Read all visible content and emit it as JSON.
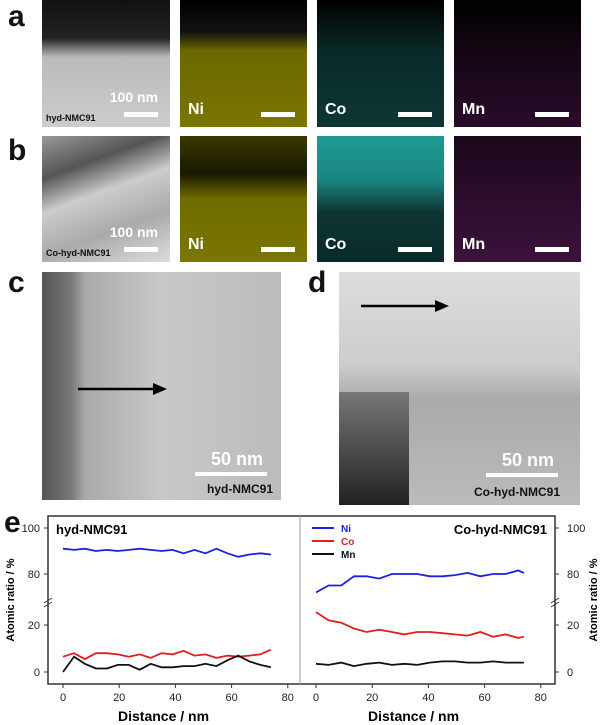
{
  "panels": {
    "a": {
      "letter": "a",
      "sample": "hyd-NMC91",
      "scale": "100 nm",
      "maps": [
        "Ni",
        "Co",
        "Mn"
      ]
    },
    "b": {
      "letter": "b",
      "sample": "Co-hyd-NMC91",
      "scale": "100 nm",
      "maps": [
        "Ni",
        "Co",
        "Mn"
      ]
    },
    "c": {
      "letter": "c",
      "sample": "hyd-NMC91",
      "scale": "50 nm"
    },
    "d": {
      "letter": "d",
      "sample": "Co-hyd-NMC91",
      "scale": "50 nm"
    },
    "e": {
      "letter": "e"
    }
  },
  "colors": {
    "Ni": "#1f1fe0",
    "Co": "#e01f1f",
    "Mn": "#111111",
    "ni_map": "#b8b400",
    "co_map": "#2ad0c8",
    "mn_map": "#a020a0"
  },
  "chart_data": [
    {
      "type": "line",
      "title": "hyd-NMC91",
      "xlabel": "Distance / nm",
      "ylabel": "Atomic ratio / %",
      "xlim": [
        0,
        80
      ],
      "xticks": [
        "0",
        "20",
        "40",
        "60",
        "80"
      ],
      "yticks": [
        "0",
        "20",
        "80",
        "100"
      ],
      "ybreak": [
        27,
        73
      ],
      "x": [
        0,
        3.9,
        7.8,
        11.7,
        15.6,
        19.5,
        23.4,
        27.3,
        31.2,
        35.1,
        39,
        42.9,
        46.8,
        50.7,
        54.6,
        58.5,
        62.4,
        66.3,
        70.2,
        74
      ],
      "series": [
        {
          "name": "Ni",
          "values": [
            91,
            90.5,
            91,
            90,
            90.5,
            90,
            90.5,
            91,
            90.5,
            90,
            90.5,
            89,
            90.5,
            89,
            91,
            89,
            87.5,
            88.5,
            89,
            88.5
          ]
        },
        {
          "name": "Co",
          "values": [
            6.5,
            8,
            5.5,
            8,
            8,
            7.5,
            6.5,
            7.5,
            6,
            8,
            7.5,
            9,
            7,
            7.5,
            6,
            7,
            6.5,
            7,
            7.5,
            9.5
          ]
        },
        {
          "name": "Mn",
          "values": [
            0,
            6.5,
            3.5,
            1.5,
            1.5,
            3,
            3,
            1,
            3.5,
            2,
            2,
            2.5,
            2.5,
            3.5,
            2.5,
            5,
            7,
            4.5,
            3,
            2
          ]
        }
      ]
    },
    {
      "type": "line",
      "title": "Co-hyd-NMC91",
      "xlabel": "Distance / nm",
      "ylabel": "Atomic ratio / %",
      "xlim": [
        0,
        80
      ],
      "xticks": [
        "0",
        "20",
        "40",
        "60",
        "80"
      ],
      "yticks": [
        "0",
        "20",
        "80",
        "100"
      ],
      "ybreak": [
        27,
        73
      ],
      "legend": "top-left",
      "x": [
        0,
        4.5,
        9,
        13.5,
        18,
        22.5,
        27,
        31.5,
        36,
        40.5,
        45,
        49.5,
        54,
        58.5,
        63,
        67.5,
        72,
        74
      ],
      "series": [
        {
          "name": "Ni",
          "values": [
            72,
            75,
            75,
            79,
            79,
            78,
            80,
            80,
            80,
            79,
            79,
            79.5,
            80.5,
            79,
            80,
            80,
            81.5,
            80.5
          ]
        },
        {
          "name": "Co",
          "values": [
            25.5,
            22,
            21,
            18.5,
            17,
            18,
            17,
            16,
            17,
            17,
            16.5,
            16,
            15.5,
            17,
            15,
            16,
            14.5,
            15
          ]
        },
        {
          "name": "Mn",
          "values": [
            3.5,
            3,
            4,
            2.5,
            3.5,
            4,
            3,
            3.5,
            3,
            4,
            4.5,
            4.5,
            4,
            4,
            4.5,
            4,
            4,
            4
          ]
        }
      ]
    }
  ]
}
